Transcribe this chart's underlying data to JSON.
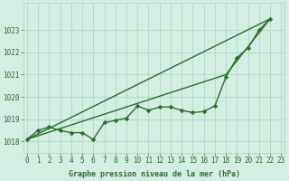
{
  "title": "Graphe pression niveau de la mer (hPa)",
  "bg_color": "#d4eee4",
  "grid_color": "#a8d4bc",
  "line_color": "#2d6e2d",
  "ylim": [
    1017.5,
    1024.2
  ],
  "xlim": [
    -0.3,
    23.3
  ],
  "yticks": [
    1018,
    1019,
    1020,
    1021,
    1022,
    1023
  ],
  "xticks": [
    0,
    1,
    2,
    3,
    4,
    5,
    6,
    7,
    8,
    9,
    10,
    11,
    12,
    13,
    14,
    15,
    16,
    17,
    18,
    19,
    20,
    21,
    22,
    23
  ],
  "tick_fontsize": 5.5,
  "label_fontsize": 6.0,
  "linewidth": 1.0,
  "markersize": 2.5,
  "straight_line1_x": [
    0,
    22
  ],
  "straight_line1_y": [
    1018.1,
    1023.5
  ],
  "straight_line2_x": [
    0,
    18,
    22
  ],
  "straight_line2_y": [
    1018.1,
    1021.0,
    1023.5
  ],
  "detail_x": [
    0,
    1,
    2,
    3,
    4,
    5,
    6,
    7,
    8,
    9,
    10,
    11,
    12,
    13,
    14,
    15,
    16,
    17,
    18,
    19,
    20,
    21,
    22
  ],
  "detail_y": [
    1018.1,
    1018.5,
    1018.65,
    1018.5,
    1018.4,
    1018.4,
    1018.1,
    1018.85,
    1018.95,
    1019.05,
    1019.6,
    1019.4,
    1019.55,
    1019.55,
    1019.4,
    1019.3,
    1019.35,
    1019.6,
    1020.9,
    1021.75,
    1022.2,
    1023.0,
    1023.5
  ]
}
